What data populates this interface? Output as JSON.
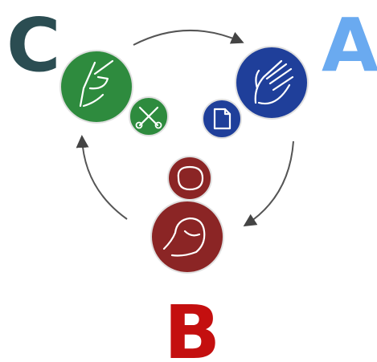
{
  "nodes": [
    {
      "label": "C"
    },
    {
      "label": "A"
    },
    {
      "label": "B"
    }
  ]
}
